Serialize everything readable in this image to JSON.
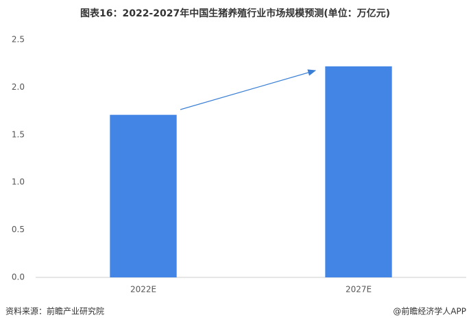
{
  "chart_data": {
    "type": "bar",
    "title": "图表16：2022-2027年中国生猪养殖行业市场规模预测(单位：万亿元)",
    "categories": [
      "2022E",
      "2027E"
    ],
    "values": [
      1.71,
      2.22
    ],
    "color": "#4285e4",
    "ylim": [
      0,
      2.5
    ],
    "yticks": [
      {
        "value": 0,
        "label": "0.0"
      },
      0.5,
      {
        "value": 1,
        "label": "1.0"
      },
      1.5,
      {
        "value": 2,
        "label": "2.0"
      },
      2.5
    ],
    "grid": false,
    "source": "资料来源：前瞻产业研究院",
    "credit": "@前瞻经济学人APP"
  }
}
